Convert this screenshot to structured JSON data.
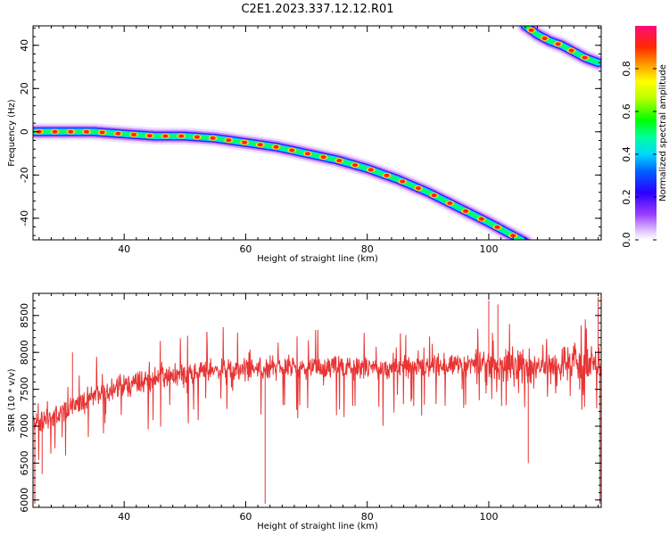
{
  "title": "C2E1.2023.337.12.12.R01",
  "chart_data": [
    {
      "type": "heatmap",
      "xlabel": "Height of straight line (km)",
      "ylabel": "Frequency (Hz)",
      "xlim": [
        25,
        118.5
      ],
      "ylim": [
        -50,
        49
      ],
      "xticks": [
        40,
        60,
        80,
        100
      ],
      "yticks": [
        -40,
        -20,
        0,
        20,
        40
      ],
      "xtick_labels": [
        "40",
        "60",
        "80",
        "100"
      ],
      "ytick_labels": [
        "-40",
        "-20",
        "0",
        "20",
        "40"
      ],
      "grid": false,
      "ridges": [
        {
          "x": [
            25,
            30,
            35,
            40,
            45,
            50,
            55,
            60,
            65,
            70,
            75,
            80,
            85,
            90,
            95,
            100,
            104,
            106
          ],
          "y": [
            0,
            0,
            0,
            -1,
            -2,
            -2,
            -3,
            -5,
            -7,
            -10,
            -13,
            -17,
            -22,
            -28,
            -35,
            -42,
            -48,
            -51
          ]
        },
        {
          "x": [
            106,
            108,
            110,
            112,
            114,
            116,
            118
          ],
          "y": [
            49,
            45,
            42,
            40,
            37,
            34,
            32
          ]
        }
      ],
      "colorbar": {
        "label": "Normalized spectral amplitude",
        "range": [
          0.0,
          1.0
        ],
        "ticks": [
          0.0,
          0.2,
          0.4,
          0.6,
          0.8
        ],
        "tick_labels": [
          "0.0",
          "0.2",
          "0.4",
          "0.6",
          "0.8"
        ]
      }
    },
    {
      "type": "line",
      "xlabel": "Height of straight line (km)",
      "ylabel": "SNR (10 * v/v)",
      "xlim": [
        25,
        118.5
      ],
      "ylim": [
        5900,
        8800
      ],
      "xticks": [
        40,
        60,
        80,
        100
      ],
      "yticks": [
        6000,
        6500,
        7000,
        7500,
        8000,
        8500
      ],
      "xtick_labels": [
        "40",
        "60",
        "80",
        "100"
      ],
      "ytick_labels": [
        "6000",
        "6500",
        "7000",
        "7500",
        "8000",
        "8500"
      ],
      "color": "#e83434",
      "grid": false,
      "trend": {
        "x": [
          25,
          28,
          30,
          35,
          40,
          45,
          50,
          55,
          60,
          65,
          70,
          75,
          80,
          85,
          90,
          95,
          100,
          105,
          110,
          115,
          118
        ],
        "y": [
          7050,
          7100,
          7200,
          7400,
          7550,
          7650,
          7700,
          7750,
          7750,
          7800,
          7800,
          7800,
          7780,
          7800,
          7820,
          7820,
          7830,
          7800,
          7800,
          7850,
          7850
        ]
      },
      "spikes": [
        {
          "x": 25.3,
          "y": 5950
        },
        {
          "x": 26.5,
          "y": 6350
        },
        {
          "x": 31.5,
          "y": 8000
        },
        {
          "x": 63.2,
          "y": 5950
        },
        {
          "x": 100.0,
          "y": 8700
        },
        {
          "x": 101.5,
          "y": 8650
        },
        {
          "x": 106.5,
          "y": 6500
        },
        {
          "x": 118.0,
          "y": 8750
        },
        {
          "x": 118.3,
          "y": 5950
        }
      ]
    }
  ]
}
